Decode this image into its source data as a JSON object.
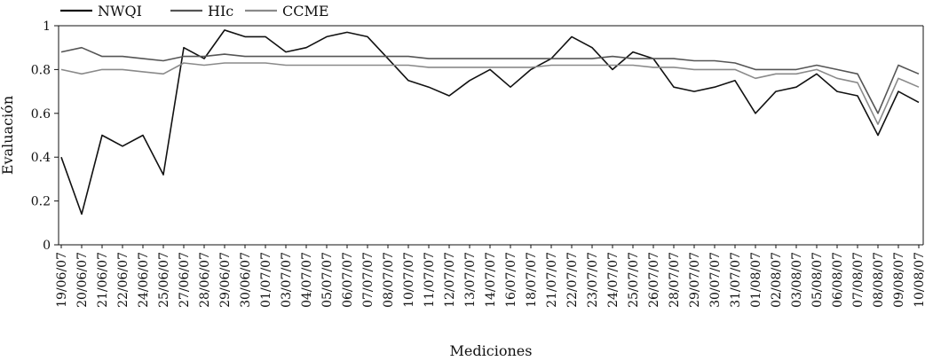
{
  "chart_data": {
    "type": "line",
    "title": "",
    "xlabel": "Mediciones",
    "ylabel": "Evaluación",
    "ylim": [
      0,
      1
    ],
    "yticks": [
      "0",
      "0.2",
      "0.4",
      "0.6",
      "0.8",
      "1"
    ],
    "categories": [
      "19/06/07",
      "20/06/07",
      "21/06/07",
      "22/06/07",
      "24/06/07",
      "25/06/07",
      "27/06/07",
      "28/06/07",
      "29/06/07",
      "30/06/07",
      "01/07/07",
      "03/07/07",
      "04/07/07",
      "05/07/07",
      "06/07/07",
      "07/07/07",
      "08/07/07",
      "10/07/07",
      "11/07/07",
      "12/07/07",
      "13/07/07",
      "14/07/07",
      "16/07/07",
      "18/07/07",
      "21/07/07",
      "22/07/07",
      "23/07/07",
      "24/07/07",
      "25/07/07",
      "26/07/07",
      "28/07/07",
      "29/07/07",
      "30/07/07",
      "31/07/07",
      "01/08/07",
      "02/08/07",
      "03/08/07",
      "05/08/07",
      "06/08/07",
      "07/08/07",
      "08/08/07",
      "09/08/07",
      "10/08/07"
    ],
    "legend_position": "top-left",
    "grid": false,
    "series": [
      {
        "name": "NWQI",
        "color": "#111111",
        "values": [
          0.4,
          0.14,
          0.5,
          0.45,
          0.5,
          0.32,
          0.9,
          0.85,
          0.98,
          0.95,
          0.95,
          0.88,
          0.9,
          0.95,
          0.97,
          0.95,
          0.85,
          0.75,
          0.72,
          0.68,
          0.75,
          0.8,
          0.72,
          0.8,
          0.85,
          0.95,
          0.9,
          0.8,
          0.88,
          0.85,
          0.72,
          0.7,
          0.72,
          0.75,
          0.6,
          0.7,
          0.72,
          0.78,
          0.7,
          0.68,
          0.5,
          0.7,
          0.65
        ]
      },
      {
        "name": "HIc",
        "color": "#555555",
        "values": [
          0.88,
          0.9,
          0.86,
          0.86,
          0.85,
          0.84,
          0.86,
          0.86,
          0.87,
          0.86,
          0.86,
          0.86,
          0.86,
          0.86,
          0.86,
          0.86,
          0.86,
          0.86,
          0.85,
          0.85,
          0.85,
          0.85,
          0.85,
          0.85,
          0.85,
          0.85,
          0.85,
          0.86,
          0.85,
          0.85,
          0.85,
          0.84,
          0.84,
          0.83,
          0.8,
          0.8,
          0.8,
          0.82,
          0.8,
          0.78,
          0.6,
          0.82,
          0.78
        ]
      },
      {
        "name": "CCME",
        "color": "#8a8a8a",
        "values": [
          0.8,
          0.78,
          0.8,
          0.8,
          0.79,
          0.78,
          0.83,
          0.82,
          0.83,
          0.83,
          0.83,
          0.82,
          0.82,
          0.82,
          0.82,
          0.82,
          0.82,
          0.82,
          0.81,
          0.81,
          0.81,
          0.81,
          0.81,
          0.81,
          0.82,
          0.82,
          0.82,
          0.82,
          0.82,
          0.81,
          0.81,
          0.8,
          0.8,
          0.8,
          0.76,
          0.78,
          0.78,
          0.8,
          0.76,
          0.74,
          0.55,
          0.76,
          0.72
        ]
      }
    ]
  }
}
